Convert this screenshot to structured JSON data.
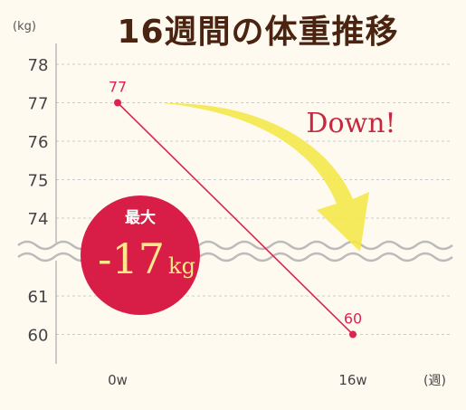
{
  "title": "16週間の体重推移",
  "colors": {
    "background": "#fffaf0",
    "title": "#4a2410",
    "line": "#d8264f",
    "axis_text": "#444444",
    "grid": "#cccccc",
    "break_wave": "#bbbbbb",
    "arrow": "#f3e84a",
    "badge": "#d81e47",
    "badge_value": "#fde98a",
    "callout": "#c8283f"
  },
  "chart_data": {
    "type": "line",
    "title": "16週間の体重推移",
    "ylabel_unit": "(kg)",
    "xlabel_unit": "(週)",
    "x_labels": [
      "0w",
      "16w"
    ],
    "y_ticks": [
      60,
      61,
      74,
      75,
      76,
      77,
      78
    ],
    "axis_break": {
      "between": [
        61,
        74
      ]
    },
    "grid": true,
    "series": [
      {
        "x": [
          "0w",
          "16w"
        ],
        "values": [
          77,
          60
        ],
        "data_labels": [
          "77",
          "60"
        ]
      }
    ]
  },
  "annotations": {
    "badge": {
      "line1": "最大",
      "value": "-17",
      "unit": "kg"
    },
    "callout": "Down!"
  }
}
